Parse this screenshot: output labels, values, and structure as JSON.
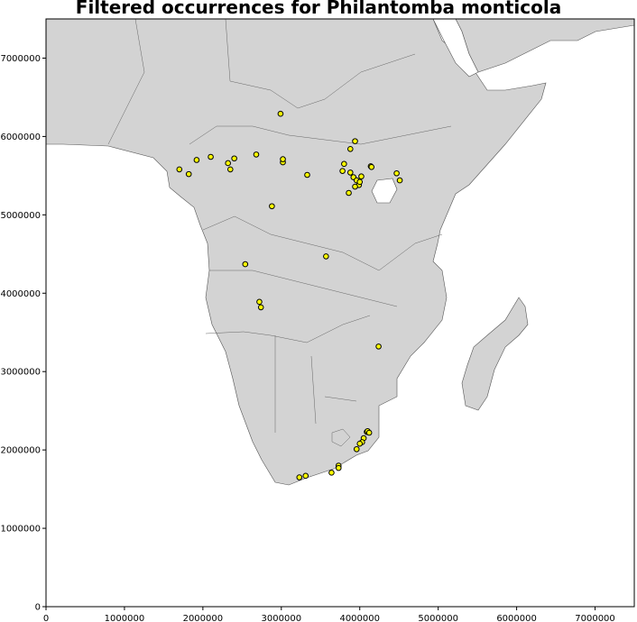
{
  "chart_data": {
    "type": "scatter",
    "title": "Filtered occurrences for Philantomba monticola",
    "xlabel": "",
    "ylabel": "",
    "xlim": [
      0,
      7500000
    ],
    "ylim": [
      0,
      7500000
    ],
    "x_ticks": [
      0,
      1000000,
      2000000,
      3000000,
      4000000,
      5000000,
      6000000,
      7000000
    ],
    "y_ticks": [
      0,
      1000000,
      2000000,
      3000000,
      4000000,
      5000000,
      6000000,
      7000000
    ],
    "x_tick_labels": [
      "0",
      "1000000",
      "2000000",
      "3000000",
      "4000000",
      "5000000",
      "6000000",
      "7000000"
    ],
    "y_tick_labels": [
      "0",
      "1000000",
      "2000000",
      "3000000",
      "4000000",
      "5000000",
      "6000000",
      "7000000"
    ],
    "grid": false,
    "background_land": "#d3d3d3",
    "background_sea": "#ffffff",
    "marker_color": "#ffff00",
    "marker_edge": "#000000",
    "points": [
      [
        1700000,
        5580000
      ],
      [
        1820000,
        5520000
      ],
      [
        1920000,
        5700000
      ],
      [
        2100000,
        5740000
      ],
      [
        2320000,
        5660000
      ],
      [
        2350000,
        5580000
      ],
      [
        2400000,
        5720000
      ],
      [
        2680000,
        5770000
      ],
      [
        2990000,
        6290000
      ],
      [
        3020000,
        5670000
      ],
      [
        3020000,
        5710000
      ],
      [
        3330000,
        5510000
      ],
      [
        2880000,
        5110000
      ],
      [
        2540000,
        4370000
      ],
      [
        2720000,
        3890000
      ],
      [
        2740000,
        3820000
      ],
      [
        3570000,
        4470000
      ],
      [
        3780000,
        5560000
      ],
      [
        3800000,
        5650000
      ],
      [
        3880000,
        5840000
      ],
      [
        3940000,
        5940000
      ],
      [
        3880000,
        5540000
      ],
      [
        3920000,
        5480000
      ],
      [
        3960000,
        5440000
      ],
      [
        3990000,
        5380000
      ],
      [
        3940000,
        5360000
      ],
      [
        4020000,
        5490000
      ],
      [
        4000000,
        5420000
      ],
      [
        3860000,
        5280000
      ],
      [
        4140000,
        5620000
      ],
      [
        4150000,
        5610000
      ],
      [
        4470000,
        5530000
      ],
      [
        4510000,
        5440000
      ],
      [
        4240000,
        3320000
      ],
      [
        4090000,
        2230000
      ],
      [
        4100000,
        2240000
      ],
      [
        4120000,
        2220000
      ],
      [
        4050000,
        2150000
      ],
      [
        4030000,
        2100000
      ],
      [
        4000000,
        2080000
      ],
      [
        3960000,
        2010000
      ],
      [
        3730000,
        1800000
      ],
      [
        3730000,
        1770000
      ],
      [
        3640000,
        1710000
      ],
      [
        3310000,
        1670000
      ],
      [
        3230000,
        1650000
      ]
    ]
  }
}
